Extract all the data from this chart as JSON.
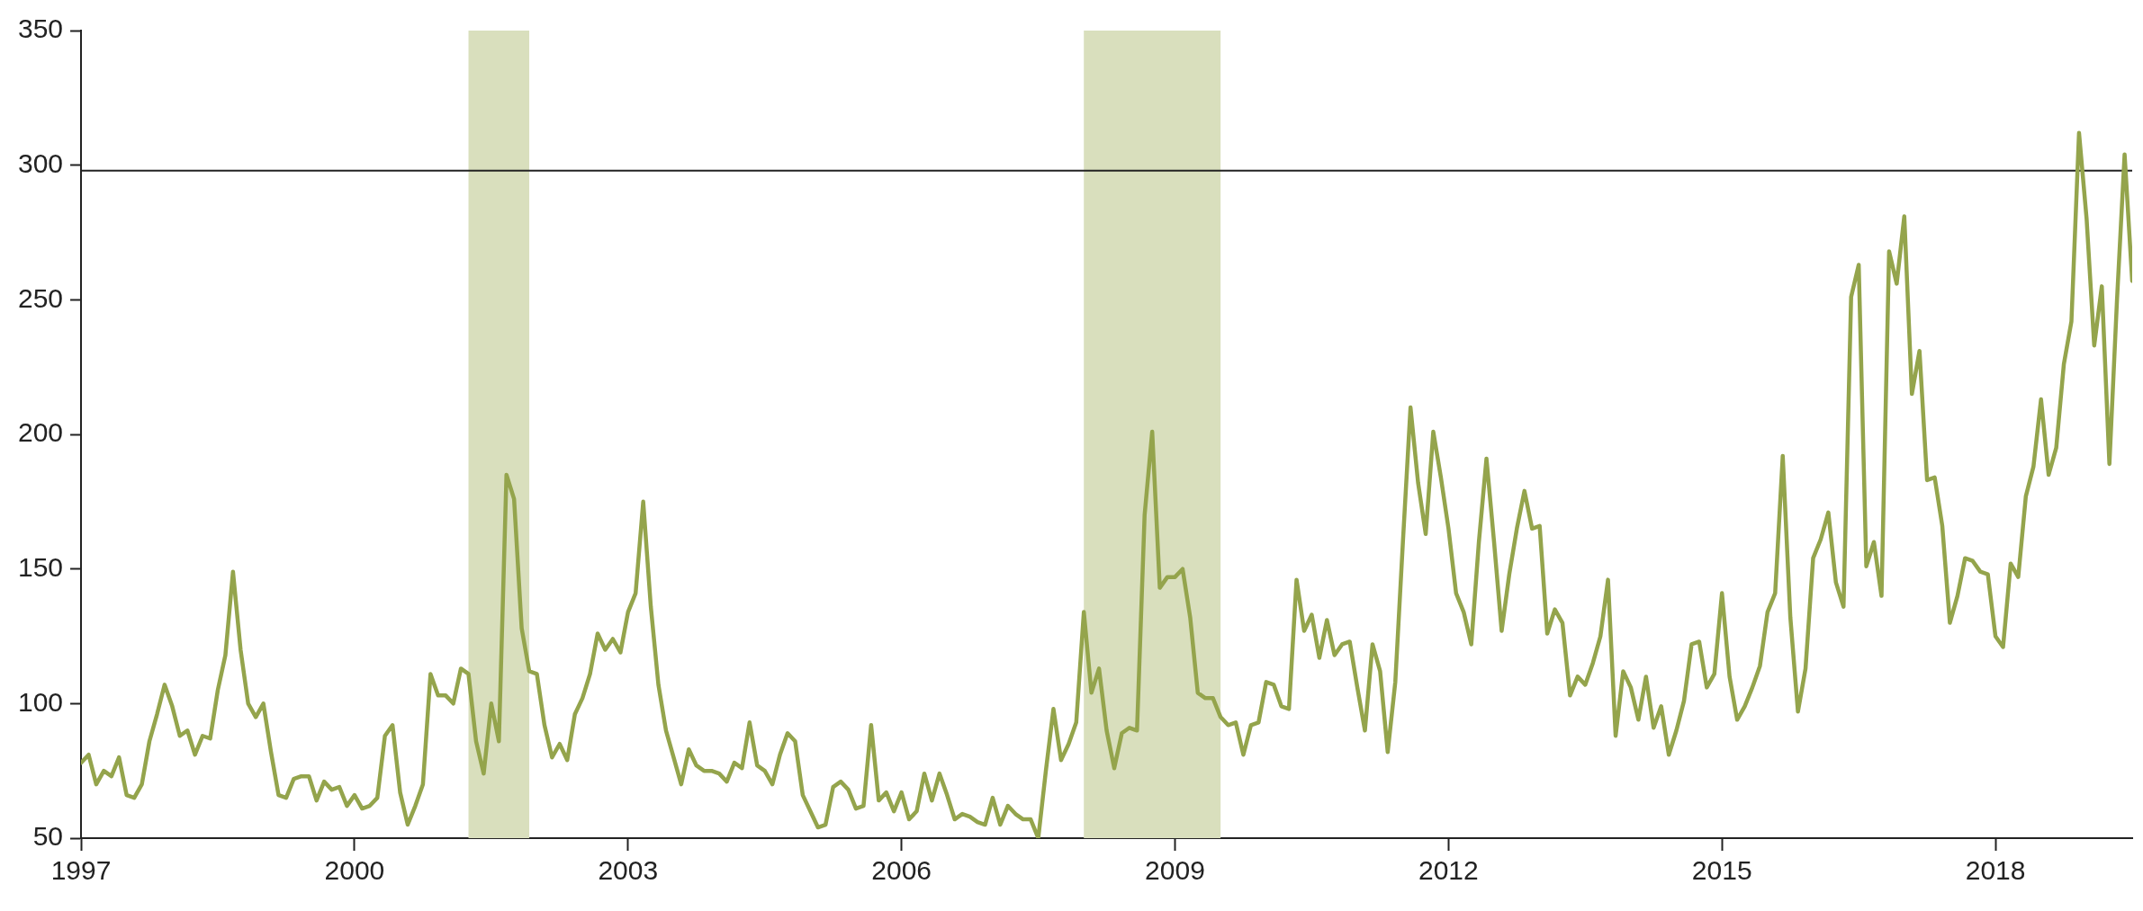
{
  "chart_data": {
    "type": "line",
    "x": [
      "1997-01",
      "1997-02",
      "1997-03",
      "1997-04",
      "1997-05",
      "1997-06",
      "1997-07",
      "1997-08",
      "1997-09",
      "1997-10",
      "1997-11",
      "1997-12",
      "1998-01",
      "1998-02",
      "1998-03",
      "1998-04",
      "1998-05",
      "1998-06",
      "1998-07",
      "1998-08",
      "1998-09",
      "1998-10",
      "1998-11",
      "1998-12",
      "1999-01",
      "1999-02",
      "1999-03",
      "1999-04",
      "1999-05",
      "1999-06",
      "1999-07",
      "1999-08",
      "1999-09",
      "1999-10",
      "1999-11",
      "1999-12",
      "2000-01",
      "2000-02",
      "2000-03",
      "2000-04",
      "2000-05",
      "2000-06",
      "2000-07",
      "2000-08",
      "2000-09",
      "2000-10",
      "2000-11",
      "2000-12",
      "2001-01",
      "2001-02",
      "2001-03",
      "2001-04",
      "2001-05",
      "2001-06",
      "2001-07",
      "2001-08",
      "2001-09",
      "2001-10",
      "2001-11",
      "2001-12",
      "2002-01",
      "2002-02",
      "2002-03",
      "2002-04",
      "2002-05",
      "2002-06",
      "2002-07",
      "2002-08",
      "2002-09",
      "2002-10",
      "2002-11",
      "2002-12",
      "2003-01",
      "2003-02",
      "2003-03",
      "2003-04",
      "2003-05",
      "2003-06",
      "2003-07",
      "2003-08",
      "2003-09",
      "2003-10",
      "2003-11",
      "2003-12",
      "2004-01",
      "2004-02",
      "2004-03",
      "2004-04",
      "2004-05",
      "2004-06",
      "2004-07",
      "2004-08",
      "2004-09",
      "2004-10",
      "2004-11",
      "2004-12",
      "2005-01",
      "2005-02",
      "2005-03",
      "2005-04",
      "2005-05",
      "2005-06",
      "2005-07",
      "2005-08",
      "2005-09",
      "2005-10",
      "2005-11",
      "2005-12",
      "2006-01",
      "2006-02",
      "2006-03",
      "2006-04",
      "2006-05",
      "2006-06",
      "2006-07",
      "2006-08",
      "2006-09",
      "2006-10",
      "2006-11",
      "2006-12",
      "2007-01",
      "2007-02",
      "2007-03",
      "2007-04",
      "2007-05",
      "2007-06",
      "2007-07",
      "2007-08",
      "2007-09",
      "2007-10",
      "2007-11",
      "2007-12",
      "2008-01",
      "2008-02",
      "2008-03",
      "2008-04",
      "2008-05",
      "2008-06",
      "2008-07",
      "2008-08",
      "2008-09",
      "2008-10",
      "2008-11",
      "2008-12",
      "2009-01",
      "2009-02",
      "2009-03",
      "2009-04",
      "2009-05",
      "2009-06",
      "2009-07",
      "2009-08",
      "2009-09",
      "2009-10",
      "2009-11",
      "2009-12",
      "2010-01",
      "2010-02",
      "2010-03",
      "2010-04",
      "2010-05",
      "2010-06",
      "2010-07",
      "2010-08",
      "2010-09",
      "2010-10",
      "2010-11",
      "2010-12",
      "2011-01",
      "2011-02",
      "2011-03",
      "2011-04",
      "2011-05",
      "2011-06",
      "2011-07",
      "2011-08",
      "2011-09",
      "2011-10",
      "2011-11",
      "2011-12",
      "2012-01",
      "2012-02",
      "2012-03",
      "2012-04",
      "2012-05",
      "2012-06",
      "2012-07",
      "2012-08",
      "2012-09",
      "2012-10",
      "2012-11",
      "2012-12",
      "2013-01",
      "2013-02",
      "2013-03",
      "2013-04",
      "2013-05",
      "2013-06",
      "2013-07",
      "2013-08",
      "2013-09",
      "2013-10",
      "2013-11",
      "2013-12",
      "2014-01",
      "2014-02",
      "2014-03",
      "2014-04",
      "2014-05",
      "2014-06",
      "2014-07",
      "2014-08",
      "2014-09",
      "2014-10",
      "2014-11",
      "2014-12",
      "2015-01",
      "2015-02",
      "2015-03",
      "2015-04",
      "2015-05",
      "2015-06",
      "2015-07",
      "2015-08",
      "2015-09",
      "2015-10",
      "2015-11",
      "2015-12",
      "2016-01",
      "2016-02",
      "2016-03",
      "2016-04",
      "2016-05",
      "2016-06",
      "2016-07",
      "2016-08",
      "2016-09",
      "2016-10",
      "2016-11",
      "2016-12",
      "2017-01",
      "2017-02",
      "2017-03",
      "2017-04",
      "2017-05",
      "2017-06",
      "2017-07",
      "2017-08",
      "2017-09",
      "2017-10",
      "2017-11",
      "2017-12",
      "2018-01",
      "2018-02",
      "2018-03",
      "2018-04",
      "2018-05",
      "2018-06",
      "2018-07",
      "2018-08",
      "2018-09",
      "2018-10",
      "2018-11",
      "2018-12",
      "2019-01",
      "2019-02",
      "2019-03",
      "2019-04",
      "2019-05",
      "2019-06",
      "2019-07"
    ],
    "series": [
      {
        "color": "#94a44c",
        "values": [
          78,
          81,
          70,
          75,
          73,
          80,
          66,
          65,
          70,
          86,
          96,
          107,
          99,
          88,
          90,
          81,
          88,
          87,
          105,
          118,
          149,
          120,
          100,
          95,
          100,
          82,
          66,
          65,
          72,
          73,
          73,
          64,
          71,
          68,
          69,
          62,
          66,
          61,
          62,
          65,
          88,
          92,
          67,
          55,
          62,
          70,
          111,
          103,
          103,
          100,
          113,
          111,
          86,
          74,
          100,
          86,
          185,
          176,
          128,
          112,
          111,
          92,
          80,
          85,
          79,
          96,
          102,
          111,
          126,
          120,
          124,
          119,
          134,
          141,
          175,
          136,
          107,
          90,
          80,
          70,
          83,
          77,
          75,
          75,
          74,
          71,
          78,
          76,
          93,
          77,
          75,
          70,
          81,
          89,
          86,
          66,
          60,
          54,
          55,
          69,
          71,
          68,
          61,
          62,
          92,
          64,
          67,
          60,
          67,
          57,
          60,
          74,
          64,
          74,
          66,
          57,
          59,
          58,
          56,
          55,
          65,
          55,
          62,
          59,
          57,
          57,
          50,
          75,
          98,
          79,
          85,
          93,
          134,
          104,
          113,
          90,
          76,
          89,
          91,
          90,
          170,
          201,
          143,
          147,
          147,
          150,
          132,
          104,
          102,
          102,
          95,
          92,
          93,
          81,
          92,
          93,
          108,
          107,
          99,
          98,
          146,
          127,
          133,
          117,
          131,
          118,
          122,
          123,
          106,
          90,
          122,
          112,
          82,
          108,
          160,
          210,
          182,
          163,
          201,
          184,
          165,
          141,
          134,
          122,
          160,
          191,
          160,
          127,
          148,
          165,
          179,
          165,
          166,
          126,
          135,
          130,
          103,
          110,
          107,
          115,
          125,
          146,
          88,
          112,
          106,
          94,
          110,
          91,
          99,
          81,
          90,
          101,
          122,
          123,
          106,
          111,
          141,
          110,
          94,
          99,
          106,
          114,
          134,
          141,
          192,
          132,
          97,
          113,
          154,
          161,
          171,
          145,
          136,
          251,
          263,
          151,
          160,
          140,
          268,
          256,
          281,
          215,
          231,
          183,
          184,
          166,
          130,
          140,
          154,
          153,
          149,
          148,
          125,
          121,
          152,
          147,
          177,
          188,
          213,
          185,
          195,
          226,
          242,
          312,
          280,
          233,
          255,
          189,
          250,
          304,
          257
        ]
      }
    ],
    "xlim": [
      "1997-01",
      "2019-07"
    ],
    "xticks": [
      "1997",
      "2000",
      "2003",
      "2006",
      "2009",
      "2012",
      "2015",
      "2018"
    ],
    "ylim": [
      50,
      350
    ],
    "yticks": [
      50,
      100,
      150,
      200,
      250,
      300,
      350
    ],
    "ref_lines": [
      {
        "axis": "y",
        "value": 298,
        "color": "#222222"
      }
    ],
    "bands": [
      {
        "axis": "x",
        "from": "2001-04",
        "to": "2001-12",
        "color": "#d9dfbd"
      },
      {
        "axis": "x",
        "from": "2008-01",
        "to": "2009-07",
        "color": "#d9dfbd"
      }
    ],
    "grid": false,
    "legend": false,
    "marker": "none",
    "line_style": "solid"
  }
}
